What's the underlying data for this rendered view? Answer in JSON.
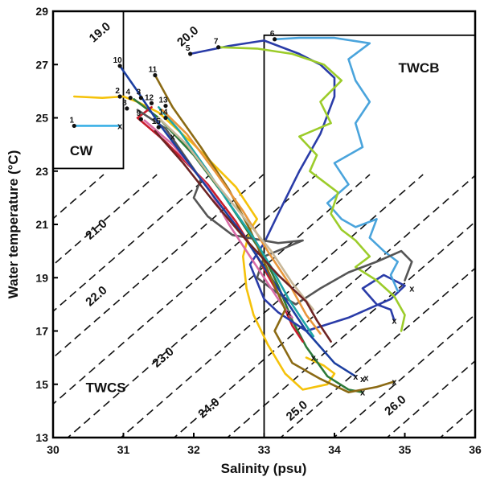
{
  "chart_data": {
    "type": "line",
    "xlabel": "Salinity (psu)",
    "ylabel": "Water temperature (°C)",
    "xlim": [
      30,
      36
    ],
    "ylim": [
      13,
      29
    ],
    "xticks": [
      "30",
      "31",
      "32",
      "33",
      "34",
      "35",
      "36"
    ],
    "yticks": [
      "13",
      "15",
      "17",
      "19",
      "21",
      "23",
      "25",
      "27",
      "29"
    ],
    "grid": false,
    "legend": "none",
    "isopycnals": [
      {
        "label": "19.0",
        "at": [
          30.7,
          28.1
        ]
      },
      {
        "label": "20.0",
        "at": [
          31.95,
          27.95
        ]
      },
      {
        "label": "21.0",
        "at": [
          30.65,
          20.7
        ]
      },
      {
        "label": "22.0",
        "at": [
          30.65,
          18.2
        ]
      },
      {
        "label": "23.0",
        "at": [
          31.6,
          15.9
        ]
      },
      {
        "label": "24.0",
        "at": [
          32.25,
          14.0
        ]
      },
      {
        "label": "25.0",
        "at": [
          33.5,
          13.9
        ]
      },
      {
        "label": "26.0",
        "at": [
          34.9,
          14.1
        ]
      }
    ],
    "regions": [
      {
        "name": "CW",
        "box": [
          30,
          31,
          23.1,
          29
        ],
        "label_at": [
          30.4,
          23.6
        ]
      },
      {
        "name": "TWCB",
        "box": [
          33,
          36,
          13,
          28.1
        ],
        "label_at": [
          35.2,
          26.7
        ]
      },
      {
        "name": "TWCS",
        "box": null,
        "label_at": [
          30.75,
          14.7
        ]
      }
    ],
    "series": [
      {
        "name": "1",
        "color": "#3ab0e6",
        "values": [
          [
            30.3,
            24.7
          ],
          [
            30.95,
            24.7
          ]
        ]
      },
      {
        "name": "2",
        "color": "#f5c20a",
        "values": [
          [
            30.3,
            25.8
          ],
          [
            30.7,
            25.75
          ],
          [
            31.0,
            25.8
          ],
          [
            31.2,
            25.6
          ],
          [
            31.5,
            25.2
          ],
          [
            32.0,
            24.0
          ],
          [
            32.6,
            22.4
          ],
          [
            32.9,
            21.2
          ],
          [
            32.8,
            20.8
          ],
          [
            32.7,
            19.8
          ],
          [
            32.75,
            18.6
          ],
          [
            32.85,
            17.6
          ],
          [
            33.05,
            16.5
          ],
          [
            33.3,
            15.4
          ],
          [
            33.55,
            14.8
          ],
          [
            33.9,
            15.0
          ],
          [
            34.0,
            15.4
          ],
          [
            33.85,
            15.7
          ],
          [
            33.6,
            16.0
          ]
        ]
      },
      {
        "name": "3",
        "color": "#2d7a3a",
        "values": [
          [
            31.15,
            25.7
          ],
          [
            31.5,
            25.0
          ],
          [
            32.0,
            23.6
          ],
          [
            32.4,
            22.2
          ],
          [
            32.7,
            21.0
          ],
          [
            33.0,
            19.8
          ],
          [
            33.2,
            18.7
          ],
          [
            33.4,
            17.4
          ],
          [
            33.6,
            16.4
          ],
          [
            33.9,
            15.3
          ],
          [
            34.2,
            14.8
          ],
          [
            34.4,
            14.7
          ]
        ]
      },
      {
        "name": "4",
        "color": "#c81e2c",
        "values": [
          [
            31.4,
            25.4
          ],
          [
            31.2,
            25.0
          ],
          [
            31.6,
            24.1
          ],
          [
            32.2,
            22.5
          ],
          [
            32.6,
            21.1
          ],
          [
            32.9,
            19.8
          ],
          [
            33.2,
            18.4
          ],
          [
            33.4,
            17.2
          ],
          [
            33.55,
            16.6
          ]
        ]
      },
      {
        "name": "5",
        "color": "#2a3ca8",
        "values": [
          [
            31.95,
            27.4
          ],
          [
            32.5,
            27.7
          ],
          [
            33.0,
            27.9
          ],
          [
            33.5,
            27.4
          ],
          [
            33.8,
            27.0
          ],
          [
            34.0,
            26.5
          ],
          [
            34.0,
            25.8
          ],
          [
            33.8,
            24.4
          ],
          [
            33.5,
            23.0
          ],
          [
            33.2,
            21.4
          ],
          [
            33.0,
            20.3
          ],
          [
            32.8,
            19.5
          ],
          [
            33.0,
            18.2
          ],
          [
            33.2,
            17.7
          ],
          [
            33.6,
            17.0
          ],
          [
            34.2,
            17.5
          ],
          [
            34.8,
            18.2
          ],
          [
            35.0,
            18.7
          ],
          [
            34.7,
            19.1
          ],
          [
            34.4,
            18.6
          ],
          [
            34.6,
            18.0
          ],
          [
            34.8,
            17.8
          ],
          [
            34.85,
            17.4
          ]
        ]
      },
      {
        "name": "6",
        "color": "#4aa4dc",
        "values": [
          [
            33.15,
            27.95
          ],
          [
            33.5,
            28.0
          ],
          [
            34.0,
            28.0
          ],
          [
            34.5,
            27.8
          ],
          [
            34.2,
            27.2
          ],
          [
            34.3,
            26.4
          ],
          [
            34.5,
            25.6
          ],
          [
            34.3,
            24.8
          ],
          [
            34.4,
            23.9
          ],
          [
            34.0,
            23.3
          ],
          [
            34.2,
            22.5
          ],
          [
            33.9,
            21.8
          ],
          [
            34.1,
            21.2
          ],
          [
            34.3,
            20.9
          ],
          [
            34.6,
            21.2
          ],
          [
            34.5,
            20.5
          ],
          [
            34.7,
            20.0
          ],
          [
            34.9,
            19.6
          ],
          [
            34.8,
            19.1
          ],
          [
            34.9,
            18.5
          ]
        ]
      },
      {
        "name": "7",
        "color": "#9ccc2a",
        "values": [
          [
            32.35,
            27.65
          ],
          [
            32.9,
            27.6
          ],
          [
            33.4,
            27.4
          ],
          [
            33.85,
            27.0
          ],
          [
            34.1,
            26.4
          ],
          [
            33.8,
            25.6
          ],
          [
            33.95,
            24.8
          ],
          [
            33.5,
            24.3
          ],
          [
            33.75,
            23.6
          ],
          [
            33.65,
            23.0
          ],
          [
            34.05,
            22.2
          ],
          [
            33.95,
            21.4
          ],
          [
            34.1,
            20.8
          ],
          [
            34.3,
            20.4
          ],
          [
            34.5,
            19.8
          ],
          [
            34.3,
            19.4
          ],
          [
            34.6,
            18.9
          ],
          [
            34.85,
            18.3
          ],
          [
            35.0,
            17.6
          ],
          [
            34.95,
            17.0
          ]
        ]
      },
      {
        "name": "8",
        "color": "#555555",
        "values": [
          [
            31.2,
            25.3
          ],
          [
            31.6,
            24.6
          ],
          [
            32.1,
            22.7
          ],
          [
            32.0,
            22.0
          ],
          [
            32.2,
            21.3
          ],
          [
            32.55,
            20.6
          ],
          [
            33.2,
            20.3
          ],
          [
            33.55,
            20.4
          ],
          [
            33.0,
            19.8
          ],
          [
            32.9,
            19.0
          ],
          [
            33.2,
            18.4
          ],
          [
            33.45,
            18.0
          ],
          [
            33.8,
            18.6
          ],
          [
            34.2,
            19.2
          ],
          [
            34.6,
            19.6
          ],
          [
            34.95,
            20.0
          ],
          [
            35.1,
            19.6
          ],
          [
            35.0,
            18.9
          ]
        ]
      },
      {
        "name": "9",
        "color": "#d86aa6",
        "values": [
          [
            31.3,
            24.9
          ],
          [
            31.7,
            24.0
          ],
          [
            32.2,
            22.4
          ],
          [
            32.5,
            21.0
          ],
          [
            32.8,
            19.8
          ],
          [
            33.0,
            19.0
          ],
          [
            33.2,
            18.2
          ],
          [
            33.4,
            17.5
          ]
        ]
      },
      {
        "name": "10",
        "color": "#1c3fa0",
        "values": [
          [
            30.95,
            26.95
          ],
          [
            31.2,
            26.0
          ],
          [
            31.5,
            24.8
          ],
          [
            31.9,
            23.4
          ],
          [
            32.3,
            22.0
          ],
          [
            32.7,
            20.6
          ],
          [
            33.0,
            19.4
          ],
          [
            33.3,
            18.2
          ],
          [
            33.6,
            17.0
          ],
          [
            34.0,
            15.8
          ],
          [
            34.3,
            15.3
          ]
        ]
      },
      {
        "name": "11",
        "color": "#8b6a14",
        "values": [
          [
            31.45,
            26.6
          ],
          [
            31.7,
            25.4
          ],
          [
            32.1,
            23.9
          ],
          [
            32.5,
            22.3
          ],
          [
            32.8,
            20.8
          ],
          [
            33.0,
            19.6
          ],
          [
            33.2,
            18.4
          ],
          [
            33.3,
            17.8
          ],
          [
            33.15,
            17.0
          ],
          [
            33.4,
            15.8
          ],
          [
            33.8,
            15.2
          ],
          [
            34.2,
            14.7
          ],
          [
            34.6,
            14.9
          ],
          [
            34.85,
            15.1
          ]
        ]
      },
      {
        "name": "12",
        "color": "#1fa5a5",
        "values": [
          [
            31.5,
            25.4
          ],
          [
            31.8,
            24.5
          ],
          [
            32.2,
            23.0
          ],
          [
            32.5,
            21.8
          ],
          [
            32.85,
            20.5
          ],
          [
            33.1,
            19.4
          ],
          [
            33.35,
            18.2
          ],
          [
            33.55,
            17.4
          ],
          [
            33.7,
            16.8
          ]
        ]
      },
      {
        "name": "13",
        "color": "#e8963c",
        "values": [
          [
            31.55,
            25.3
          ],
          [
            31.9,
            24.4
          ],
          [
            32.3,
            23.0
          ],
          [
            32.7,
            21.5
          ],
          [
            33.05,
            20.0
          ],
          [
            33.35,
            18.8
          ],
          [
            33.6,
            17.6
          ],
          [
            33.8,
            16.9
          ]
        ]
      },
      {
        "name": "14",
        "color": "#c8b89a",
        "values": [
          [
            31.5,
            25.0
          ],
          [
            31.9,
            24.0
          ],
          [
            32.3,
            22.6
          ],
          [
            32.7,
            21.3
          ],
          [
            33.1,
            20.0
          ],
          [
            33.4,
            18.8
          ],
          [
            33.7,
            17.8
          ]
        ]
      },
      {
        "name": "15",
        "color": "#6e2323",
        "values": [
          [
            31.45,
            24.5
          ],
          [
            31.85,
            23.3
          ],
          [
            32.3,
            21.8
          ],
          [
            32.75,
            20.4
          ],
          [
            33.2,
            19.1
          ],
          [
            33.6,
            18.1
          ],
          [
            33.75,
            17.4
          ],
          [
            33.95,
            16.6
          ]
        ]
      }
    ],
    "station_labels": [
      {
        "text": "1",
        "at": [
          30.3,
          24.7
        ]
      },
      {
        "text": "2",
        "at": [
          30.95,
          25.8
        ]
      },
      {
        "text": "3",
        "at": [
          31.25,
          25.75
        ]
      },
      {
        "text": "4",
        "at": [
          31.1,
          25.75
        ]
      },
      {
        "text": "5",
        "at": [
          31.95,
          27.4
        ]
      },
      {
        "text": "6",
        "at": [
          33.15,
          27.95
        ]
      },
      {
        "text": "7",
        "at": [
          32.35,
          27.65
        ]
      },
      {
        "text": "8",
        "at": [
          31.05,
          25.35
        ]
      },
      {
        "text": "9",
        "at": [
          31.25,
          24.95
        ]
      },
      {
        "text": "10",
        "at": [
          30.95,
          26.95
        ]
      },
      {
        "text": "11",
        "at": [
          31.45,
          26.6
        ]
      },
      {
        "text": "12",
        "at": [
          31.4,
          25.55
        ]
      },
      {
        "text": "13",
        "at": [
          31.6,
          25.45
        ]
      },
      {
        "text": "14",
        "at": [
          31.6,
          25.0
        ]
      },
      {
        "text": "15",
        "at": [
          31.5,
          24.65
        ]
      }
    ],
    "end_marks": [
      [
        30.95,
        24.7
      ],
      [
        31.7,
        24.3
      ],
      [
        33.35,
        17.7
      ],
      [
        33.7,
        16.0
      ],
      [
        34.3,
        15.3
      ],
      [
        34.4,
        15.2
      ],
      [
        34.45,
        15.25
      ],
      [
        34.85,
        15.1
      ],
      [
        34.4,
        14.7
      ],
      [
        35.1,
        18.6
      ],
      [
        34.85,
        17.4
      ]
    ]
  }
}
